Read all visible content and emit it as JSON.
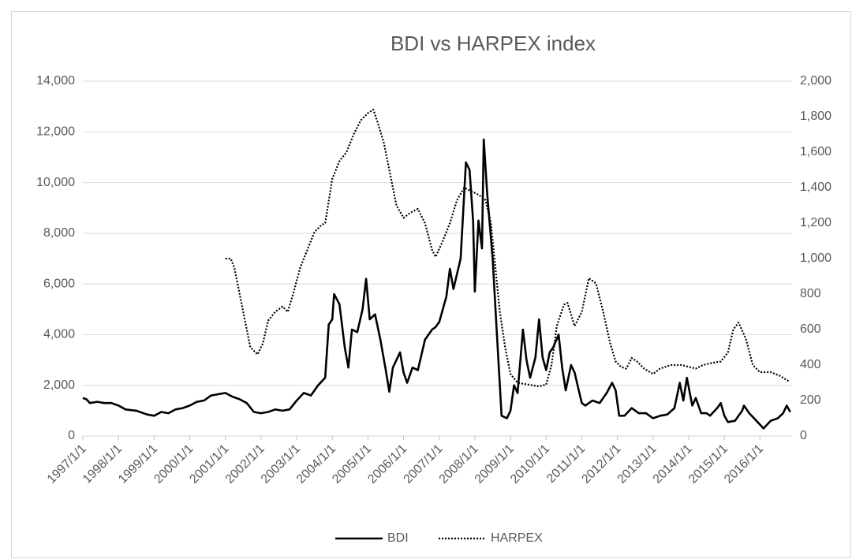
{
  "chart_data": {
    "type": "line",
    "title": "BDI vs HARPEX index",
    "xlim": [
      1997,
      2016.9
    ],
    "xticks": [
      {
        "value": 1997,
        "label": "1997/1/1"
      },
      {
        "value": 1998,
        "label": "1998/1/1"
      },
      {
        "value": 1999,
        "label": "1999/1/1"
      },
      {
        "value": 2000,
        "label": "2000/1/1"
      },
      {
        "value": 2001,
        "label": "2001/1/1"
      },
      {
        "value": 2002,
        "label": "2002/1/1"
      },
      {
        "value": 2003,
        "label": "2003/1/1"
      },
      {
        "value": 2004,
        "label": "2004/1/1"
      },
      {
        "value": 2005,
        "label": "2005/1/1"
      },
      {
        "value": 2006,
        "label": "2006/1/1"
      },
      {
        "value": 2007,
        "label": "2007/1/1"
      },
      {
        "value": 2008,
        "label": "2008/1/1"
      },
      {
        "value": 2009,
        "label": "2009/1/1"
      },
      {
        "value": 2010,
        "label": "2010/1/1"
      },
      {
        "value": 2011,
        "label": "2011/1/1"
      },
      {
        "value": 2012,
        "label": "2012/1/1"
      },
      {
        "value": 2013,
        "label": "2013/1/1"
      },
      {
        "value": 2014,
        "label": "2014/1/1"
      },
      {
        "value": 2015,
        "label": "2015/1/1"
      },
      {
        "value": 2016,
        "label": "2016/1/1"
      }
    ],
    "ylim": [
      0,
      14000
    ],
    "yticks": [
      0,
      {
        "value": 2000,
        "label": "2,000"
      },
      {
        "value": 4000,
        "label": "4,000"
      },
      {
        "value": 6000,
        "label": "6,000"
      },
      {
        "value": 8000,
        "label": "8,000"
      },
      {
        "value": 10000,
        "label": "10,000"
      },
      {
        "value": 12000,
        "label": "12,000"
      },
      {
        "value": 14000,
        "label": "14,000"
      }
    ],
    "y2lim": [
      0,
      2000
    ],
    "y2ticks": [
      0,
      200,
      400,
      600,
      800,
      {
        "value": 1000,
        "label": "1,000"
      },
      {
        "value": 1200,
        "label": "1,200"
      },
      {
        "value": 1400,
        "label": "1,400"
      },
      {
        "value": 1600,
        "label": "1,600"
      },
      {
        "value": 1800,
        "label": "1,800"
      },
      {
        "value": 2000,
        "label": "2,000"
      }
    ],
    "grid": true,
    "legend": "bottom",
    "series": [
      {
        "name": "BDI",
        "color": "#000000",
        "dash": "solid",
        "x": [
          1997.0,
          1997.1,
          1997.2,
          1997.4,
          1997.6,
          1997.8,
          1998.0,
          1998.2,
          1998.5,
          1998.8,
          1999.0,
          1999.2,
          1999.4,
          1999.6,
          1999.8,
          2000.0,
          2000.2,
          2000.4,
          2000.6,
          2000.8,
          2001.0,
          2001.2,
          2001.4,
          2001.6,
          2001.8,
          2002.0,
          2002.2,
          2002.4,
          2002.6,
          2002.8,
          2003.0,
          2003.2,
          2003.4,
          2003.6,
          2003.8,
          2003.9,
          2004.0,
          2004.05,
          2004.2,
          2004.35,
          2004.45,
          2004.55,
          2004.7,
          2004.85,
          2004.95,
          2005.05,
          2005.2,
          2005.35,
          2005.5,
          2005.6,
          2005.7,
          2005.9,
          2006.0,
          2006.1,
          2006.25,
          2006.4,
          2006.6,
          2006.8,
          2006.9,
          2007.0,
          2007.2,
          2007.3,
          2007.4,
          2007.6,
          2007.75,
          2007.85,
          2007.95,
          2008.0,
          2008.1,
          2008.2,
          2008.25,
          2008.35,
          2008.5,
          2008.6,
          2008.7,
          2008.75,
          2008.9,
          2009.0,
          2009.1,
          2009.2,
          2009.35,
          2009.45,
          2009.55,
          2009.7,
          2009.8,
          2009.9,
          2010.0,
          2010.1,
          2010.2,
          2010.35,
          2010.45,
          2010.55,
          2010.7,
          2010.8,
          2010.9,
          2011.0,
          2011.1,
          2011.3,
          2011.5,
          2011.7,
          2011.85,
          2011.95,
          2012.05,
          2012.2,
          2012.4,
          2012.6,
          2012.8,
          2013.0,
          2013.2,
          2013.4,
          2013.6,
          2013.75,
          2013.85,
          2013.95,
          2014.1,
          2014.2,
          2014.35,
          2014.5,
          2014.6,
          2014.8,
          2014.9,
          2015.0,
          2015.1,
          2015.3,
          2015.5,
          2015.55,
          2015.7,
          2015.9,
          2016.0,
          2016.1,
          2016.3,
          2016.5,
          2016.65,
          2016.75,
          2016.85
        ],
        "values": [
          1500,
          1450,
          1300,
          1350,
          1300,
          1300,
          1200,
          1050,
          1000,
          850,
          800,
          950,
          900,
          1050,
          1100,
          1200,
          1350,
          1400,
          1600,
          1650,
          1700,
          1550,
          1450,
          1300,
          950,
          900,
          950,
          1050,
          1000,
          1050,
          1400,
          1700,
          1600,
          2000,
          2300,
          4400,
          4600,
          5600,
          5200,
          3500,
          2700,
          4200,
          4100,
          5000,
          6200,
          4600,
          4800,
          3800,
          2600,
          1750,
          2700,
          3300,
          2500,
          2100,
          2700,
          2600,
          3800,
          4200,
          4300,
          4500,
          5500,
          6600,
          5800,
          7000,
          10800,
          10500,
          8500,
          5700,
          8500,
          7400,
          11700,
          9500,
          7000,
          4500,
          2000,
          800,
          700,
          1000,
          2000,
          1700,
          4200,
          3000,
          2300,
          3100,
          4600,
          3100,
          2600,
          3300,
          3500,
          4000,
          2700,
          1800,
          2800,
          2500,
          1900,
          1300,
          1200,
          1400,
          1300,
          1700,
          2100,
          1800,
          800,
          800,
          1100,
          900,
          900,
          700,
          800,
          850,
          1100,
          2100,
          1400,
          2300,
          1200,
          1500,
          900,
          900,
          800,
          1100,
          1300,
          800,
          550,
          600,
          1000,
          1200,
          900,
          600,
          450,
          300,
          600,
          700,
          900,
          1200,
          950
        ]
      },
      {
        "name": "HARPEX",
        "color": "#000000",
        "dash": "dotted",
        "axis": "y2",
        "x": [
          2001.0,
          2001.15,
          2001.25,
          2001.4,
          2001.55,
          2001.7,
          2001.9,
          2002.05,
          2002.2,
          2002.4,
          2002.6,
          2002.75,
          2002.9,
          2003.1,
          2003.3,
          2003.5,
          2003.7,
          2003.8,
          2004.0,
          2004.2,
          2004.4,
          2004.6,
          2004.8,
          2005.0,
          2005.15,
          2005.3,
          2005.45,
          2005.6,
          2005.8,
          2006.0,
          2006.2,
          2006.4,
          2006.6,
          2006.8,
          2006.9,
          2007.1,
          2007.3,
          2007.5,
          2007.7,
          2007.9,
          2008.1,
          2008.3,
          2008.45,
          2008.55,
          2008.7,
          2008.85,
          2009.0,
          2009.2,
          2009.5,
          2009.8,
          2010.0,
          2010.15,
          2010.3,
          2010.5,
          2010.6,
          2010.8,
          2011.0,
          2011.2,
          2011.4,
          2011.6,
          2011.8,
          2011.95,
          2012.1,
          2012.25,
          2012.4,
          2012.55,
          2012.75,
          2013.0,
          2013.2,
          2013.5,
          2013.8,
          2014.0,
          2014.2,
          2014.4,
          2014.6,
          2014.9,
          2015.1,
          2015.25,
          2015.4,
          2015.6,
          2015.8,
          2016.0,
          2016.3,
          2016.55,
          2016.8
        ],
        "values": [
          1000,
          1000,
          950,
          800,
          650,
          500,
          460,
          520,
          650,
          700,
          730,
          700,
          800,
          950,
          1050,
          1150,
          1190,
          1200,
          1450,
          1550,
          1600,
          1700,
          1780,
          1820,
          1840,
          1750,
          1650,
          1500,
          1300,
          1230,
          1260,
          1280,
          1200,
          1050,
          1010,
          1100,
          1200,
          1330,
          1400,
          1380,
          1360,
          1330,
          1200,
          1000,
          700,
          500,
          350,
          300,
          290,
          280,
          290,
          400,
          620,
          740,
          750,
          620,
          700,
          890,
          860,
          700,
          520,
          420,
          390,
          380,
          440,
          420,
          380,
          350,
          380,
          400,
          400,
          390,
          380,
          400,
          410,
          420,
          470,
          600,
          640,
          550,
          400,
          360,
          360,
          340,
          310
        ]
      }
    ]
  }
}
